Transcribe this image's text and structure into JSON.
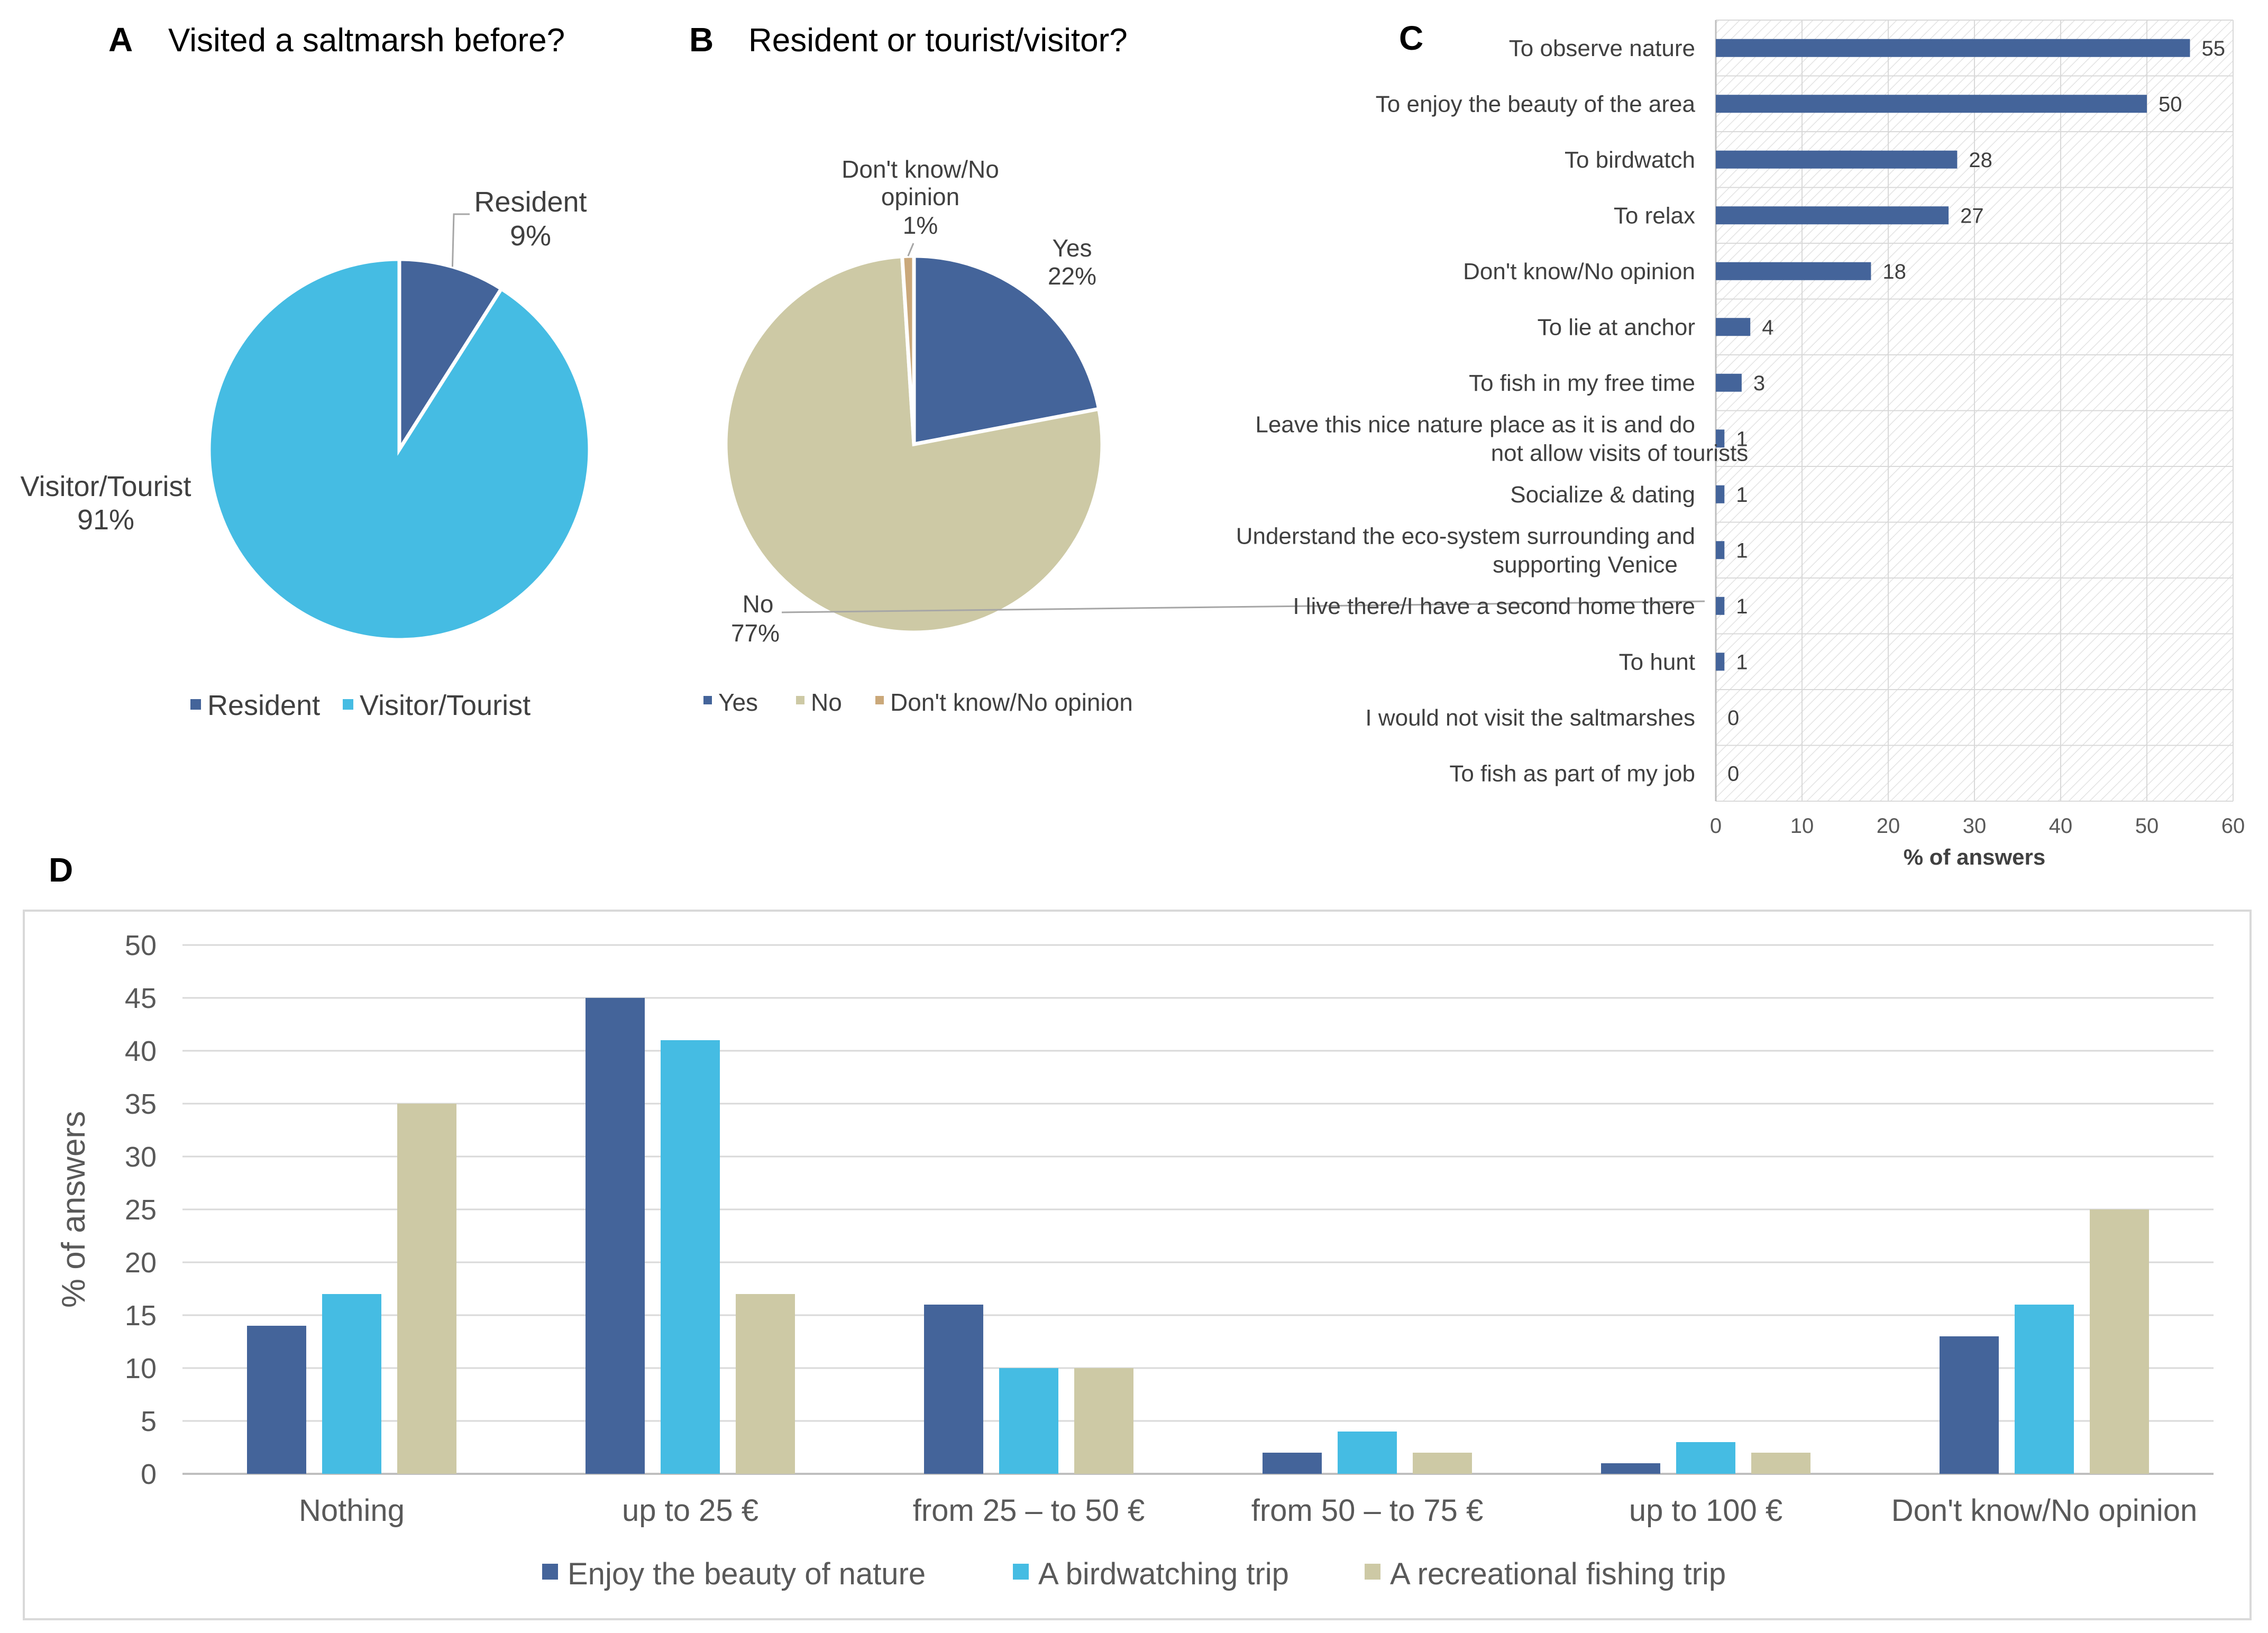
{
  "colors": {
    "dark_blue": "#44649A",
    "light_blue": "#45BCE3",
    "beige": "#CDC9A5",
    "tan": "#CAA87A",
    "grid": "#D9D9D9",
    "panel_border": "#D9D9D9"
  },
  "chart_data": [
    {
      "panel": "A",
      "type": "pie",
      "title": "Visited a saltmarsh before?",
      "slices": [
        {
          "name": "Resident",
          "value": 9,
          "label": "9%",
          "color": "#44649A"
        },
        {
          "name": "Visitor/Tourist",
          "value": 91,
          "label": "91%",
          "color": "#45BCE3"
        }
      ],
      "legend": [
        "Resident",
        "Visitor/Tourist"
      ],
      "legend_position": "bottom"
    },
    {
      "panel": "B",
      "type": "pie",
      "title": "Resident or tourist/visitor?",
      "slices": [
        {
          "name": "Yes",
          "value": 22,
          "label": "22%",
          "color": "#44649A"
        },
        {
          "name": "No",
          "value": 77,
          "label": "77%",
          "color": "#CDC9A5"
        },
        {
          "name": "Don't know/No opinion",
          "name_lines": [
            "Don't know/No",
            "opinion"
          ],
          "value": 1,
          "label": "1%",
          "color": "#CAA87A"
        }
      ],
      "legend": [
        "Yes",
        "No",
        "Don't know/No opinion"
      ],
      "legend_position": "bottom"
    },
    {
      "panel": "C",
      "type": "bar",
      "orientation": "horizontal",
      "categories": [
        [
          "To observe nature"
        ],
        [
          "To enjoy the beauty of the area"
        ],
        [
          "To birdwatch"
        ],
        [
          "To relax"
        ],
        [
          "Don't know/No opinion"
        ],
        [
          "To lie at anchor"
        ],
        [
          "To fish in my free time"
        ],
        [
          "Leave this nice nature place as it is and do",
          "not allow visits of tourists"
        ],
        [
          "Socialize & dating"
        ],
        [
          "Understand the eco-system surrounding and",
          "supporting Venice"
        ],
        [
          "I live there/I have a second home there"
        ],
        [
          "To hunt"
        ],
        [
          "I would not visit the saltmarshes"
        ],
        [
          "To fish as part of my job"
        ]
      ],
      "values": [
        55,
        50,
        28,
        27,
        18,
        4,
        3,
        1,
        1,
        1,
        1,
        1,
        0,
        0
      ],
      "xlim": [
        0,
        60
      ],
      "xticks": [
        0,
        10,
        20,
        30,
        40,
        50,
        60
      ],
      "xlabel": "% of answers",
      "color": "#44649A"
    },
    {
      "panel": "D",
      "type": "bar",
      "orientation": "vertical",
      "categories": [
        "Nothing",
        "up to 25 €",
        "from 25 – to 50 €",
        "from 50 – to 75 €",
        "up to 100 €",
        "Don't know/No opinion"
      ],
      "series": [
        {
          "name": "Enjoy the beauty of nature",
          "values": [
            14,
            45,
            16,
            2,
            1,
            13
          ],
          "color": "#44649A"
        },
        {
          "name": "A birdwatching trip",
          "values": [
            17,
            41,
            10,
            4,
            3,
            16
          ],
          "color": "#45BCE3"
        },
        {
          "name": "A recreational fishing trip",
          "values": [
            35,
            17,
            10,
            2,
            2,
            25
          ],
          "color": "#CDC9A5"
        }
      ],
      "ylim": [
        0,
        50
      ],
      "yticks": [
        0,
        5,
        10,
        15,
        20,
        25,
        30,
        35,
        40,
        45,
        50
      ],
      "ylabel": "% of answers",
      "legend_position": "bottom"
    }
  ]
}
